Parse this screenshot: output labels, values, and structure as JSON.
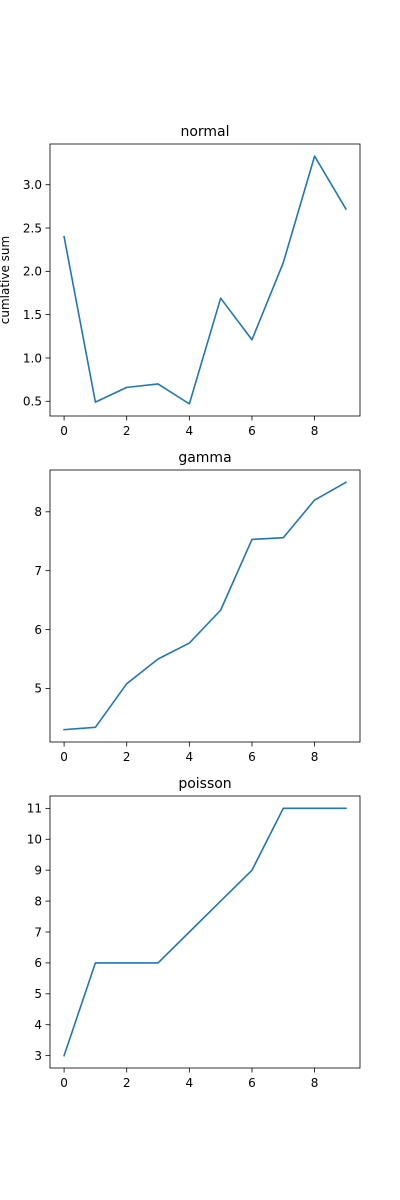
{
  "figure": {
    "background": "#ffffff",
    "line_color": "#1f77b4"
  },
  "chart_data": [
    {
      "type": "line",
      "title": "normal",
      "xlabel": "",
      "ylabel": "cumlative sum",
      "x": [
        0,
        1,
        2,
        3,
        4,
        5,
        6,
        7,
        8,
        9
      ],
      "series": [
        {
          "values": [
            2.4,
            0.49,
            0.66,
            0.7,
            0.47,
            1.69,
            1.21,
            2.1,
            3.33,
            2.72
          ]
        }
      ],
      "xlim": [
        -0.45,
        9.45
      ],
      "ylim": [
        0.33,
        3.47
      ],
      "xticks": [
        0,
        2,
        4,
        6,
        8
      ],
      "xtick_labels": [
        "0",
        "2",
        "4",
        "6",
        "8"
      ],
      "yticks": [
        0.5,
        1.0,
        1.5,
        2.0,
        2.5,
        3.0
      ],
      "ytick_labels": [
        "0.5",
        "1.0",
        "1.5",
        "2.0",
        "2.5",
        "3.0"
      ],
      "grid": false,
      "legend": "none"
    },
    {
      "type": "line",
      "title": "gamma",
      "xlabel": "",
      "ylabel": "",
      "x": [
        0,
        1,
        2,
        3,
        4,
        5,
        6,
        7,
        8,
        9
      ],
      "series": [
        {
          "values": [
            4.3,
            4.34,
            5.08,
            5.5,
            5.77,
            6.33,
            7.53,
            7.56,
            8.2,
            8.5
          ]
        }
      ],
      "xlim": [
        -0.45,
        9.45
      ],
      "ylim": [
        4.09,
        8.71
      ],
      "xticks": [
        0,
        2,
        4,
        6,
        8
      ],
      "xtick_labels": [
        "0",
        "2",
        "4",
        "6",
        "8"
      ],
      "yticks": [
        5,
        6,
        7,
        8
      ],
      "ytick_labels": [
        "5",
        "6",
        "7",
        "8"
      ],
      "grid": false,
      "legend": "none"
    },
    {
      "type": "line",
      "title": "poisson",
      "xlabel": "",
      "ylabel": "",
      "x": [
        0,
        1,
        2,
        3,
        4,
        5,
        6,
        7,
        8,
        9
      ],
      "series": [
        {
          "values": [
            3,
            6,
            6,
            6,
            7,
            8,
            9,
            11,
            11,
            11
          ]
        }
      ],
      "xlim": [
        -0.45,
        9.45
      ],
      "ylim": [
        2.6,
        11.4
      ],
      "xticks": [
        0,
        2,
        4,
        6,
        8
      ],
      "xtick_labels": [
        "0",
        "2",
        "4",
        "6",
        "8"
      ],
      "yticks": [
        3,
        4,
        5,
        6,
        7,
        8,
        9,
        10,
        11
      ],
      "ytick_labels": [
        "3",
        "4",
        "5",
        "6",
        "7",
        "8",
        "9",
        "10",
        "11"
      ],
      "grid": false,
      "legend": "none"
    }
  ]
}
